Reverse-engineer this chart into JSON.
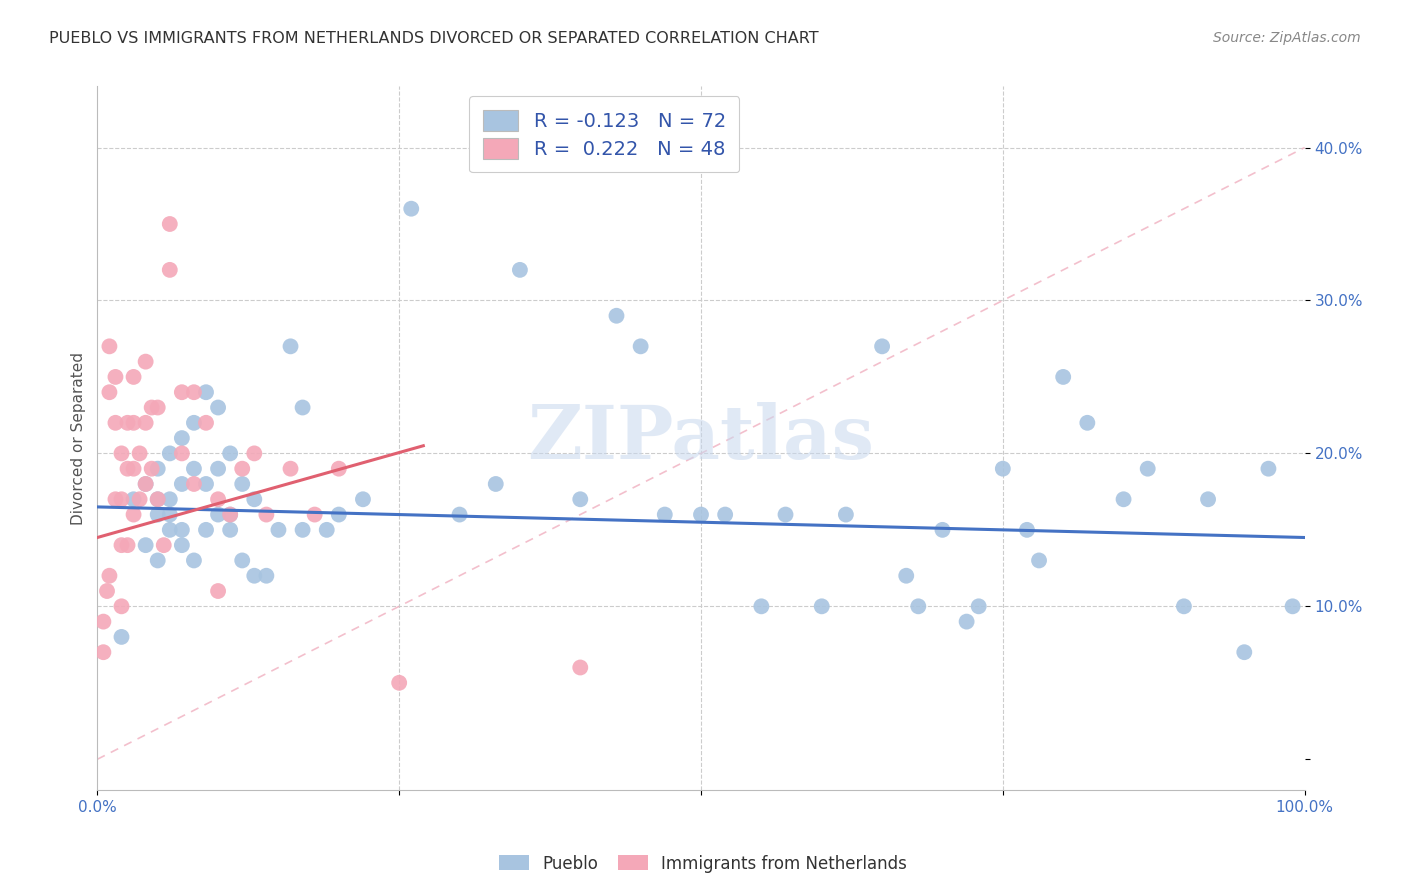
{
  "title": "PUEBLO VS IMMIGRANTS FROM NETHERLANDS DIVORCED OR SEPARATED CORRELATION CHART",
  "source": "Source: ZipAtlas.com",
  "ylabel": "Divorced or Separated",
  "xlim": [
    0.0,
    1.0
  ],
  "ylim": [
    -0.02,
    0.44
  ],
  "yticks": [
    0.0,
    0.1,
    0.2,
    0.3,
    0.4
  ],
  "ytick_labels": [
    "",
    "10.0%",
    "20.0%",
    "30.0%",
    "40.0%"
  ],
  "xticks": [
    0.0,
    0.25,
    0.5,
    0.75,
    1.0
  ],
  "xtick_labels": [
    "0.0%",
    "",
    "",
    "",
    "100.0%"
  ],
  "blue_R": "-0.123",
  "blue_N": "72",
  "pink_R": "0.222",
  "pink_N": "48",
  "blue_color": "#a8c4e0",
  "pink_color": "#f4a8b8",
  "blue_line_color": "#4472c4",
  "pink_line_color": "#e06070",
  "diagonal_color": "#f0b0c0",
  "watermark": "ZIPatlas",
  "legend_labels": [
    "Pueblo",
    "Immigrants from Netherlands"
  ],
  "blue_line_x0": 0.0,
  "blue_line_y0": 0.165,
  "blue_line_x1": 1.0,
  "blue_line_y1": 0.145,
  "pink_line_x0": 0.0,
  "pink_line_y0": 0.145,
  "pink_line_x1": 0.27,
  "pink_line_y1": 0.205,
  "blue_scatter_x": [
    0.02,
    0.03,
    0.04,
    0.04,
    0.05,
    0.05,
    0.05,
    0.06,
    0.06,
    0.06,
    0.07,
    0.07,
    0.07,
    0.08,
    0.08,
    0.09,
    0.09,
    0.1,
    0.1,
    0.11,
    0.11,
    0.12,
    0.13,
    0.14,
    0.16,
    0.17,
    0.2,
    0.22,
    0.26,
    0.3,
    0.33,
    0.35,
    0.4,
    0.43,
    0.45,
    0.47,
    0.5,
    0.52,
    0.55,
    0.57,
    0.6,
    0.62,
    0.65,
    0.67,
    0.68,
    0.7,
    0.72,
    0.73,
    0.75,
    0.77,
    0.78,
    0.8,
    0.82,
    0.85,
    0.87,
    0.9,
    0.92,
    0.95,
    0.97,
    0.99,
    0.05,
    0.06,
    0.07,
    0.08,
    0.09,
    0.1,
    0.11,
    0.12,
    0.13,
    0.15,
    0.17,
    0.19
  ],
  "blue_scatter_y": [
    0.08,
    0.17,
    0.18,
    0.14,
    0.19,
    0.16,
    0.13,
    0.2,
    0.17,
    0.15,
    0.21,
    0.18,
    0.15,
    0.22,
    0.19,
    0.24,
    0.18,
    0.23,
    0.19,
    0.2,
    0.15,
    0.18,
    0.17,
    0.12,
    0.27,
    0.23,
    0.16,
    0.17,
    0.36,
    0.16,
    0.18,
    0.32,
    0.17,
    0.29,
    0.27,
    0.16,
    0.16,
    0.16,
    0.1,
    0.16,
    0.1,
    0.16,
    0.27,
    0.12,
    0.1,
    0.15,
    0.09,
    0.1,
    0.19,
    0.15,
    0.13,
    0.25,
    0.22,
    0.17,
    0.19,
    0.1,
    0.17,
    0.07,
    0.19,
    0.1,
    0.17,
    0.16,
    0.14,
    0.13,
    0.15,
    0.16,
    0.16,
    0.13,
    0.12,
    0.15,
    0.15,
    0.15
  ],
  "pink_scatter_x": [
    0.005,
    0.005,
    0.008,
    0.01,
    0.01,
    0.01,
    0.015,
    0.015,
    0.015,
    0.02,
    0.02,
    0.02,
    0.02,
    0.025,
    0.025,
    0.025,
    0.03,
    0.03,
    0.03,
    0.03,
    0.035,
    0.035,
    0.04,
    0.04,
    0.04,
    0.045,
    0.045,
    0.05,
    0.05,
    0.055,
    0.06,
    0.06,
    0.07,
    0.07,
    0.08,
    0.08,
    0.09,
    0.1,
    0.1,
    0.11,
    0.12,
    0.13,
    0.14,
    0.16,
    0.18,
    0.2,
    0.25,
    0.4
  ],
  "pink_scatter_y": [
    0.09,
    0.07,
    0.11,
    0.27,
    0.24,
    0.12,
    0.25,
    0.22,
    0.17,
    0.2,
    0.17,
    0.14,
    0.1,
    0.22,
    0.19,
    0.14,
    0.25,
    0.22,
    0.19,
    0.16,
    0.2,
    0.17,
    0.26,
    0.22,
    0.18,
    0.23,
    0.19,
    0.23,
    0.17,
    0.14,
    0.35,
    0.32,
    0.24,
    0.2,
    0.24,
    0.18,
    0.22,
    0.17,
    0.11,
    0.16,
    0.19,
    0.2,
    0.16,
    0.19,
    0.16,
    0.19,
    0.05,
    0.06
  ]
}
